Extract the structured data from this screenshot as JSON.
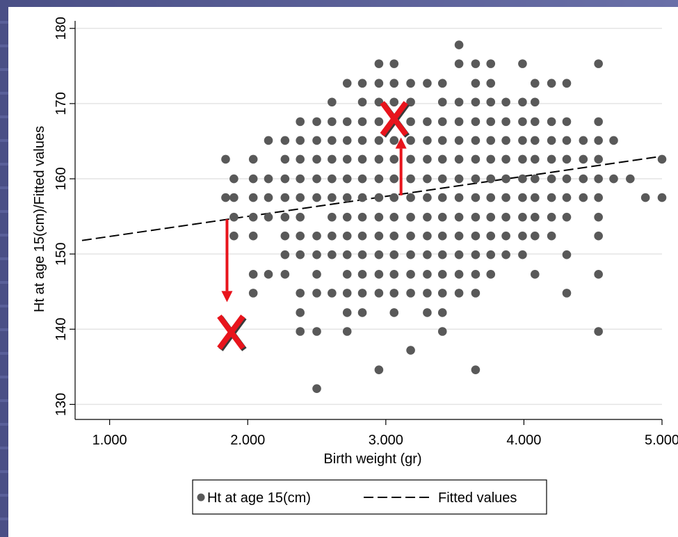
{
  "chart_data": {
    "type": "scatter",
    "xlabel": "Birth weight (gr)",
    "ylabel": "Ht at age 15(cm)/Fitted values",
    "xlim": [
      750,
      5000
    ],
    "ylim": [
      128,
      181
    ],
    "x_ticks": [
      1000,
      2000,
      3000,
      4000,
      5000
    ],
    "x_tick_labels": [
      "1.000",
      "2.000",
      "3.000",
      "4.000",
      "5.000"
    ],
    "y_ticks": [
      130,
      140,
      150,
      160,
      170,
      180
    ],
    "y_tick_labels": [
      "130",
      "140",
      "150",
      "160",
      "170",
      "180"
    ],
    "grid": true,
    "legend_position": "bottom",
    "legend": [
      "Ht at age 15(cm)",
      "Fitted values"
    ],
    "series": [
      {
        "name": "Ht at age 15(cm)",
        "kind": "scatter",
        "color": "#595959",
        "points": [
          [
            3530,
            177.8
          ],
          [
            2950,
            175.3
          ],
          [
            3060,
            175.3
          ],
          [
            3530,
            175.3
          ],
          [
            3650,
            175.3
          ],
          [
            3760,
            175.3
          ],
          [
            3990,
            175.3
          ],
          [
            4540,
            175.3
          ],
          [
            2720,
            172.7
          ],
          [
            2830,
            172.7
          ],
          [
            2950,
            172.7
          ],
          [
            3060,
            172.7
          ],
          [
            3180,
            172.7
          ],
          [
            3300,
            172.7
          ],
          [
            3410,
            172.7
          ],
          [
            3650,
            172.7
          ],
          [
            3760,
            172.7
          ],
          [
            4080,
            172.7
          ],
          [
            4200,
            172.7
          ],
          [
            4310,
            172.7
          ],
          [
            2610,
            170.2
          ],
          [
            2830,
            170.2
          ],
          [
            2950,
            170.2
          ],
          [
            3060,
            170.2
          ],
          [
            3180,
            170.2
          ],
          [
            3410,
            170.2
          ],
          [
            3530,
            170.2
          ],
          [
            3650,
            170.2
          ],
          [
            3760,
            170.2
          ],
          [
            3870,
            170.2
          ],
          [
            3990,
            170.2
          ],
          [
            4080,
            170.2
          ],
          [
            2380,
            167.6
          ],
          [
            2500,
            167.6
          ],
          [
            2610,
            167.6
          ],
          [
            2720,
            167.6
          ],
          [
            2830,
            167.6
          ],
          [
            2950,
            167.6
          ],
          [
            3180,
            167.6
          ],
          [
            3300,
            167.6
          ],
          [
            3410,
            167.6
          ],
          [
            3530,
            167.6
          ],
          [
            3650,
            167.6
          ],
          [
            3760,
            167.6
          ],
          [
            3870,
            167.6
          ],
          [
            3990,
            167.6
          ],
          [
            4080,
            167.6
          ],
          [
            4200,
            167.6
          ],
          [
            4310,
            167.6
          ],
          [
            4540,
            167.6
          ],
          [
            2150,
            165.1
          ],
          [
            2270,
            165.1
          ],
          [
            2380,
            165.1
          ],
          [
            2500,
            165.1
          ],
          [
            2610,
            165.1
          ],
          [
            2720,
            165.1
          ],
          [
            2830,
            165.1
          ],
          [
            2950,
            165.1
          ],
          [
            3060,
            165.1
          ],
          [
            3180,
            165.1
          ],
          [
            3300,
            165.1
          ],
          [
            3410,
            165.1
          ],
          [
            3530,
            165.1
          ],
          [
            3650,
            165.1
          ],
          [
            3760,
            165.1
          ],
          [
            3870,
            165.1
          ],
          [
            3990,
            165.1
          ],
          [
            4080,
            165.1
          ],
          [
            4200,
            165.1
          ],
          [
            4310,
            165.1
          ],
          [
            4430,
            165.1
          ],
          [
            4540,
            165.1
          ],
          [
            4650,
            165.1
          ],
          [
            1840,
            162.6
          ],
          [
            2040,
            162.6
          ],
          [
            2270,
            162.6
          ],
          [
            2380,
            162.6
          ],
          [
            2500,
            162.6
          ],
          [
            2610,
            162.6
          ],
          [
            2720,
            162.6
          ],
          [
            2830,
            162.6
          ],
          [
            2950,
            162.6
          ],
          [
            3060,
            162.6
          ],
          [
            3180,
            162.6
          ],
          [
            3300,
            162.6
          ],
          [
            3410,
            162.6
          ],
          [
            3530,
            162.6
          ],
          [
            3650,
            162.6
          ],
          [
            3760,
            162.6
          ],
          [
            3870,
            162.6
          ],
          [
            3990,
            162.6
          ],
          [
            4080,
            162.6
          ],
          [
            4200,
            162.6
          ],
          [
            4310,
            162.6
          ],
          [
            4430,
            162.6
          ],
          [
            4540,
            162.6
          ],
          [
            5000,
            162.6
          ],
          [
            1900,
            160.0
          ],
          [
            2040,
            160.0
          ],
          [
            2150,
            160.0
          ],
          [
            2270,
            160.0
          ],
          [
            2380,
            160.0
          ],
          [
            2500,
            160.0
          ],
          [
            2610,
            160.0
          ],
          [
            2720,
            160.0
          ],
          [
            2830,
            160.0
          ],
          [
            2950,
            160.0
          ],
          [
            3060,
            160.0
          ],
          [
            3180,
            160.0
          ],
          [
            3300,
            160.0
          ],
          [
            3410,
            160.0
          ],
          [
            3530,
            160.0
          ],
          [
            3650,
            160.0
          ],
          [
            3760,
            160.0
          ],
          [
            3870,
            160.0
          ],
          [
            3990,
            160.0
          ],
          [
            4080,
            160.0
          ],
          [
            4200,
            160.0
          ],
          [
            4310,
            160.0
          ],
          [
            4430,
            160.0
          ],
          [
            4540,
            160.0
          ],
          [
            4650,
            160.0
          ],
          [
            4770,
            160.0
          ],
          [
            1840,
            157.5
          ],
          [
            1900,
            157.5
          ],
          [
            2040,
            157.5
          ],
          [
            2150,
            157.5
          ],
          [
            2270,
            157.5
          ],
          [
            2380,
            157.5
          ],
          [
            2500,
            157.5
          ],
          [
            2610,
            157.5
          ],
          [
            2720,
            157.5
          ],
          [
            2830,
            157.5
          ],
          [
            2950,
            157.5
          ],
          [
            3060,
            157.5
          ],
          [
            3180,
            157.5
          ],
          [
            3300,
            157.5
          ],
          [
            3410,
            157.5
          ],
          [
            3530,
            157.5
          ],
          [
            3650,
            157.5
          ],
          [
            3760,
            157.5
          ],
          [
            3870,
            157.5
          ],
          [
            3990,
            157.5
          ],
          [
            4080,
            157.5
          ],
          [
            4200,
            157.5
          ],
          [
            4310,
            157.5
          ],
          [
            4430,
            157.5
          ],
          [
            4540,
            157.5
          ],
          [
            4880,
            157.5
          ],
          [
            5000,
            157.5
          ],
          [
            1900,
            154.9
          ],
          [
            2040,
            154.9
          ],
          [
            2150,
            154.9
          ],
          [
            2270,
            154.9
          ],
          [
            2380,
            154.9
          ],
          [
            2610,
            154.9
          ],
          [
            2720,
            154.9
          ],
          [
            2830,
            154.9
          ],
          [
            2950,
            154.9
          ],
          [
            3060,
            154.9
          ],
          [
            3180,
            154.9
          ],
          [
            3300,
            154.9
          ],
          [
            3410,
            154.9
          ],
          [
            3530,
            154.9
          ],
          [
            3650,
            154.9
          ],
          [
            3760,
            154.9
          ],
          [
            3870,
            154.9
          ],
          [
            3990,
            154.9
          ],
          [
            4080,
            154.9
          ],
          [
            4200,
            154.9
          ],
          [
            4310,
            154.9
          ],
          [
            4540,
            154.9
          ],
          [
            1900,
            152.4
          ],
          [
            2040,
            152.4
          ],
          [
            2270,
            152.4
          ],
          [
            2380,
            152.4
          ],
          [
            2500,
            152.4
          ],
          [
            2610,
            152.4
          ],
          [
            2720,
            152.4
          ],
          [
            2830,
            152.4
          ],
          [
            2950,
            152.4
          ],
          [
            3060,
            152.4
          ],
          [
            3180,
            152.4
          ],
          [
            3300,
            152.4
          ],
          [
            3410,
            152.4
          ],
          [
            3530,
            152.4
          ],
          [
            3650,
            152.4
          ],
          [
            3760,
            152.4
          ],
          [
            3870,
            152.4
          ],
          [
            3990,
            152.4
          ],
          [
            4080,
            152.4
          ],
          [
            4200,
            152.4
          ],
          [
            4540,
            152.4
          ],
          [
            2270,
            149.9
          ],
          [
            2380,
            149.9
          ],
          [
            2500,
            149.9
          ],
          [
            2610,
            149.9
          ],
          [
            2720,
            149.9
          ],
          [
            2830,
            149.9
          ],
          [
            2950,
            149.9
          ],
          [
            3060,
            149.9
          ],
          [
            3180,
            149.9
          ],
          [
            3300,
            149.9
          ],
          [
            3410,
            149.9
          ],
          [
            3530,
            149.9
          ],
          [
            3650,
            149.9
          ],
          [
            3760,
            149.9
          ],
          [
            3870,
            149.9
          ],
          [
            3990,
            149.9
          ],
          [
            4310,
            149.9
          ],
          [
            2040,
            147.3
          ],
          [
            2150,
            147.3
          ],
          [
            2270,
            147.3
          ],
          [
            2500,
            147.3
          ],
          [
            2720,
            147.3
          ],
          [
            2830,
            147.3
          ],
          [
            2950,
            147.3
          ],
          [
            3060,
            147.3
          ],
          [
            3180,
            147.3
          ],
          [
            3300,
            147.3
          ],
          [
            3410,
            147.3
          ],
          [
            3530,
            147.3
          ],
          [
            3650,
            147.3
          ],
          [
            3760,
            147.3
          ],
          [
            4080,
            147.3
          ],
          [
            4540,
            147.3
          ],
          [
            2040,
            144.8
          ],
          [
            2380,
            144.8
          ],
          [
            2500,
            144.8
          ],
          [
            2610,
            144.8
          ],
          [
            2720,
            144.8
          ],
          [
            2830,
            144.8
          ],
          [
            2950,
            144.8
          ],
          [
            3060,
            144.8
          ],
          [
            3180,
            144.8
          ],
          [
            3300,
            144.8
          ],
          [
            3410,
            144.8
          ],
          [
            3530,
            144.8
          ],
          [
            3650,
            144.8
          ],
          [
            4310,
            144.8
          ],
          [
            2380,
            142.2
          ],
          [
            2720,
            142.2
          ],
          [
            2830,
            142.2
          ],
          [
            3060,
            142.2
          ],
          [
            3300,
            142.2
          ],
          [
            3410,
            142.2
          ],
          [
            2380,
            139.7
          ],
          [
            2500,
            139.7
          ],
          [
            2720,
            139.7
          ],
          [
            3410,
            139.7
          ],
          [
            4540,
            139.7
          ],
          [
            3180,
            137.2
          ],
          [
            2950,
            134.6
          ],
          [
            3650,
            134.6
          ],
          [
            2500,
            132.1
          ]
        ]
      },
      {
        "name": "Fitted values",
        "kind": "line",
        "style": "dashed",
        "color": "#000000",
        "points": [
          [
            800,
            151.8
          ],
          [
            5000,
            163.0
          ]
        ]
      }
    ],
    "annotations": [
      {
        "type": "cross",
        "x": 3060,
        "y": 168.0,
        "color": "#e8141c"
      },
      {
        "type": "cross",
        "x": 1880,
        "y": 139.6,
        "color": "#e8141c"
      },
      {
        "type": "arrow",
        "x": 3110,
        "y_from": 157.8,
        "y_to": 165.5,
        "color": "#e8141c"
      },
      {
        "type": "arrow",
        "x": 1850,
        "y_from": 154.6,
        "y_to": 143.6,
        "color": "#e8141c"
      }
    ]
  }
}
